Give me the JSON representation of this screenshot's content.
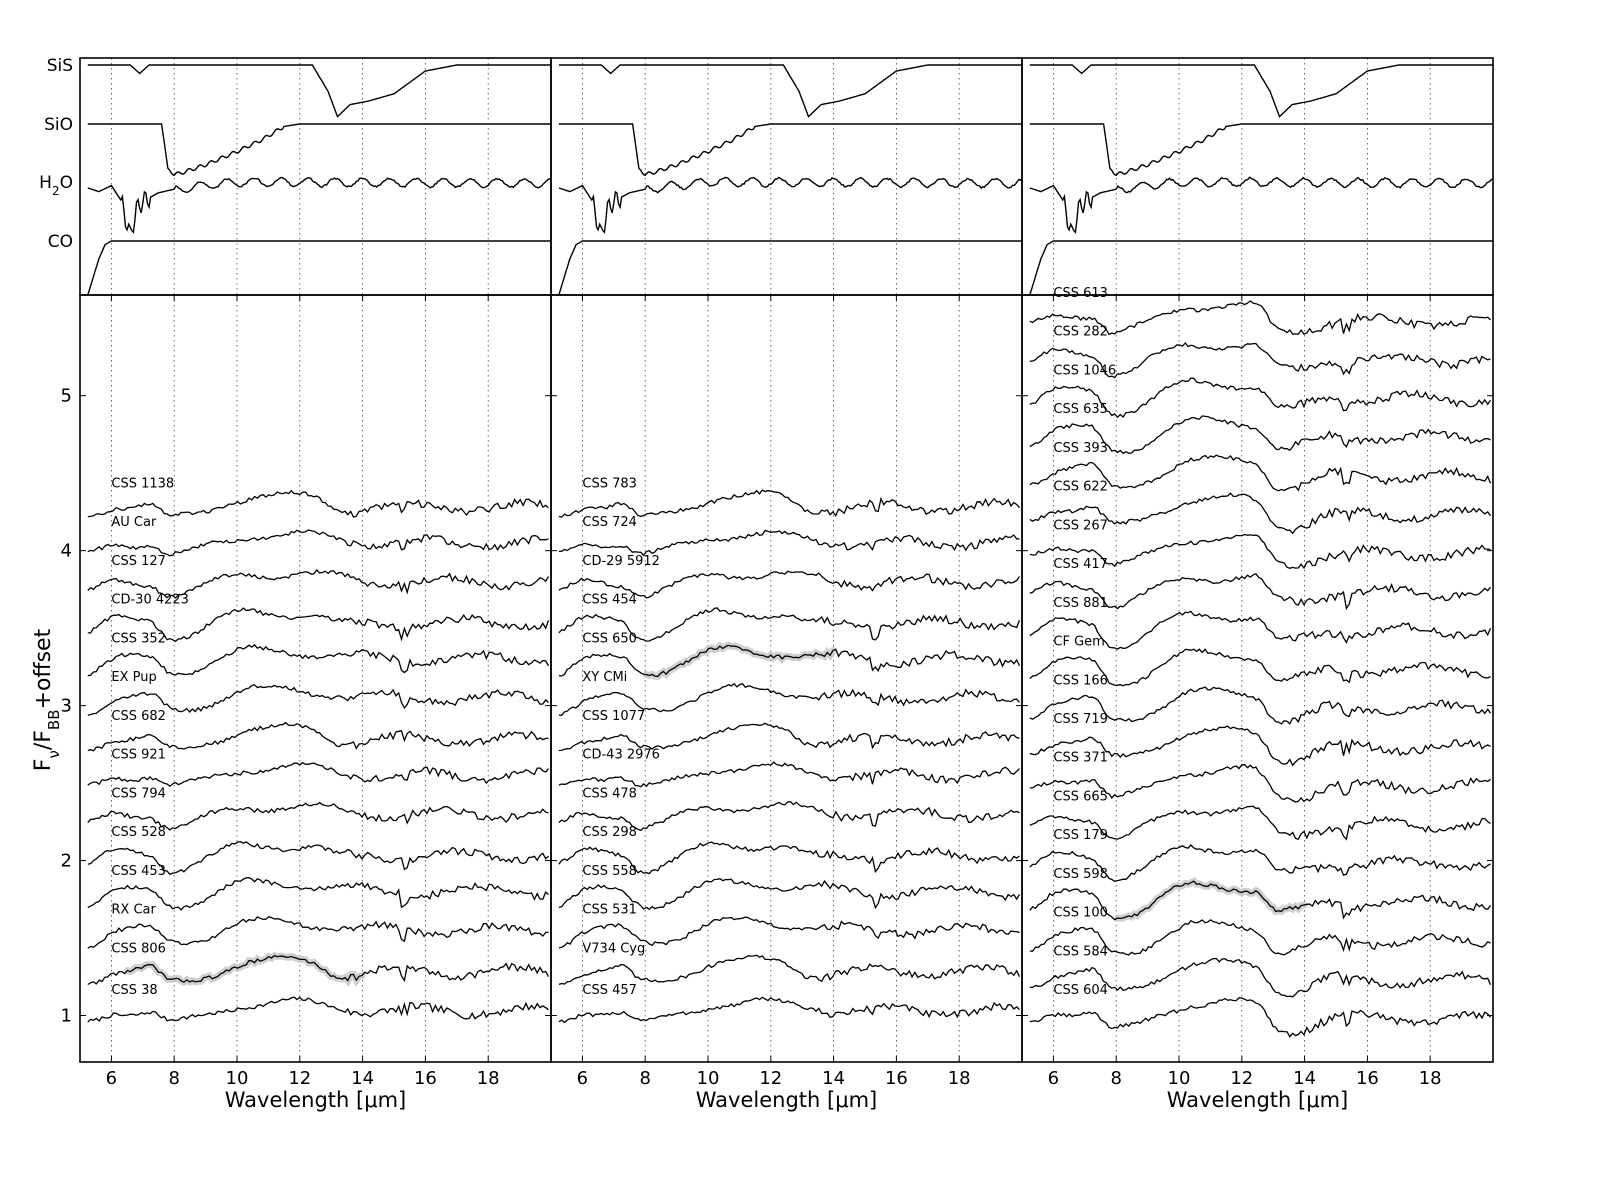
{
  "figure": {
    "colors": {
      "spectrum": "#000000",
      "error_band": "#c8c8c8",
      "grid": "#444444"
    },
    "ylabel": {
      "main": "F",
      "sub1": "ν",
      "mid": "/F",
      "sub2": "BB",
      "tail": "+offset"
    },
    "xlabel": "Wavelength [μm]"
  },
  "chart_data": [
    {
      "type": "line",
      "panel": "top templates (all three columns identical)",
      "series": [
        {
          "name": "SiS",
          "label_main": "SiS",
          "label_sub": "",
          "label_tail": "",
          "x": [
            5.25,
            6.6,
            6.9,
            7.2,
            12.4,
            12.9,
            13.2,
            13.6,
            14.2,
            15.0,
            16.0,
            17.0,
            20.0
          ],
          "y": [
            0,
            0,
            -0.7,
            0,
            0,
            -2.2,
            -4.3,
            -3.3,
            -3.0,
            -2.4,
            -0.5,
            0,
            0
          ]
        },
        {
          "name": "SiO",
          "label_main": "SiO",
          "label_sub": "",
          "label_tail": "",
          "x": [
            5.25,
            7.6,
            7.8,
            8.0,
            8.2,
            9.0,
            10.0,
            10.8,
            11.5,
            12.0,
            20.0
          ],
          "y": [
            0,
            0,
            -3.7,
            -4.2,
            -4.1,
            -3.4,
            -2.3,
            -1.3,
            -0.2,
            0,
            0
          ]
        },
        {
          "name": "H2O",
          "label_main": "H",
          "label_sub": "2",
          "label_tail": "O",
          "x": [
            5.25,
            5.6,
            6.0,
            6.3,
            6.6,
            6.8,
            7.0,
            7.5,
            8.0,
            9.0,
            10.0,
            20.0
          ],
          "y": [
            -0.5,
            -0.8,
            -0.3,
            -1.5,
            -4.5,
            -2.3,
            -1.6,
            -0.9,
            -0.6,
            -0.3,
            0,
            -0.1
          ]
        },
        {
          "name": "CO",
          "label_main": "CO",
          "label_sub": "",
          "label_tail": "",
          "x": [
            5.25,
            5.4,
            5.6,
            5.8,
            6.0,
            20.0
          ],
          "y": [
            -4.5,
            -3.2,
            -1.5,
            -0.3,
            0,
            0
          ]
        }
      ]
    },
    {
      "type": "line",
      "panel": "left column",
      "xlabel": "Wavelength [μm]",
      "xlim": [
        5.0,
        20.0
      ],
      "ylim": [
        0.7,
        5.65
      ],
      "xticks": [
        6,
        8,
        10,
        12,
        14,
        16,
        18
      ],
      "yticks": [
        1,
        2,
        3,
        4,
        5
      ],
      "series": [
        {
          "name": "CSS 38",
          "offset": 0.95,
          "band": []
        },
        {
          "name": "CSS 806",
          "offset": 1.22,
          "band": [
            6.5,
            14
          ]
        },
        {
          "name": "RX Car",
          "offset": 1.47,
          "band": []
        },
        {
          "name": "CSS 453",
          "offset": 1.72,
          "band": []
        },
        {
          "name": "CSS 528",
          "offset": 1.97,
          "band": []
        },
        {
          "name": "CSS 794",
          "offset": 2.22,
          "band": []
        },
        {
          "name": "CSS 921",
          "offset": 2.47,
          "band": []
        },
        {
          "name": "CSS 682",
          "offset": 2.72,
          "band": []
        },
        {
          "name": "EX Pup",
          "offset": 2.97,
          "band": []
        },
        {
          "name": "CSS 352",
          "offset": 3.22,
          "band": []
        },
        {
          "name": "CD-30 4223",
          "offset": 3.47,
          "band": []
        },
        {
          "name": "CSS 127",
          "offset": 3.72,
          "band": []
        },
        {
          "name": "AU Car",
          "offset": 3.97,
          "band": []
        },
        {
          "name": "CSS 1138",
          "offset": 4.22,
          "band": []
        }
      ]
    },
    {
      "type": "line",
      "panel": "middle column",
      "xlabel": "Wavelength [μm]",
      "xlim": [
        5.0,
        20.0
      ],
      "ylim": [
        0.7,
        5.65
      ],
      "xticks": [
        6,
        8,
        10,
        12,
        14,
        16,
        18
      ],
      "yticks": [
        1,
        2,
        3,
        4,
        5
      ],
      "series": [
        {
          "name": "CSS 457",
          "offset": 0.95,
          "band": []
        },
        {
          "name": "V734 Cyg",
          "offset": 1.22,
          "band": []
        },
        {
          "name": "CSS 531",
          "offset": 1.47,
          "band": []
        },
        {
          "name": "CSS 558",
          "offset": 1.72,
          "band": []
        },
        {
          "name": "CSS 298",
          "offset": 1.97,
          "band": []
        },
        {
          "name": "CSS 478",
          "offset": 2.22,
          "band": []
        },
        {
          "name": "CD-43 2976",
          "offset": 2.47,
          "band": []
        },
        {
          "name": "CSS 1077",
          "offset": 2.72,
          "band": []
        },
        {
          "name": "XY CMi",
          "offset": 2.97,
          "band": []
        },
        {
          "name": "CSS 650",
          "offset": 3.22,
          "band": [
            8,
            14
          ]
        },
        {
          "name": "CSS 454",
          "offset": 3.47,
          "band": []
        },
        {
          "name": "CD-29 5912",
          "offset": 3.72,
          "band": []
        },
        {
          "name": "CSS 724",
          "offset": 3.97,
          "band": []
        },
        {
          "name": "CSS 783",
          "offset": 4.22,
          "band": []
        }
      ]
    },
    {
      "type": "line",
      "panel": "right column",
      "xlabel": "Wavelength [μm]",
      "xlim": [
        5.0,
        20.0
      ],
      "ylim": [
        0.7,
        5.65
      ],
      "xticks": [
        6,
        8,
        10,
        12,
        14,
        16,
        18
      ],
      "yticks": [
        1,
        2,
        3,
        4,
        5
      ],
      "series": [
        {
          "name": "CSS 604",
          "offset": 0.95,
          "band": []
        },
        {
          "name": "CSS 584",
          "offset": 1.2,
          "band": []
        },
        {
          "name": "CSS 100",
          "offset": 1.45,
          "band": []
        },
        {
          "name": "CSS 598",
          "offset": 1.7,
          "band": [
            8,
            14
          ]
        },
        {
          "name": "CSS 179",
          "offset": 1.95,
          "band": []
        },
        {
          "name": "CSS 665",
          "offset": 2.2,
          "band": []
        },
        {
          "name": "CSS 371",
          "offset": 2.45,
          "band": []
        },
        {
          "name": "CSS 719",
          "offset": 2.7,
          "band": []
        },
        {
          "name": "CSS 166",
          "offset": 2.95,
          "band": []
        },
        {
          "name": "CF Gem",
          "offset": 3.2,
          "band": []
        },
        {
          "name": "CSS 881",
          "offset": 3.45,
          "band": []
        },
        {
          "name": "CSS 417",
          "offset": 3.7,
          "band": []
        },
        {
          "name": "CSS 267",
          "offset": 3.95,
          "band": []
        },
        {
          "name": "CSS 622",
          "offset": 4.2,
          "band": []
        },
        {
          "name": "CSS 393",
          "offset": 4.45,
          "band": []
        },
        {
          "name": "CSS 635",
          "offset": 4.7,
          "band": []
        },
        {
          "name": "CSS 1046",
          "offset": 4.95,
          "band": []
        },
        {
          "name": "CSS 282",
          "offset": 5.2,
          "band": []
        },
        {
          "name": "CSS 613",
          "offset": 5.45,
          "band": []
        }
      ]
    }
  ]
}
